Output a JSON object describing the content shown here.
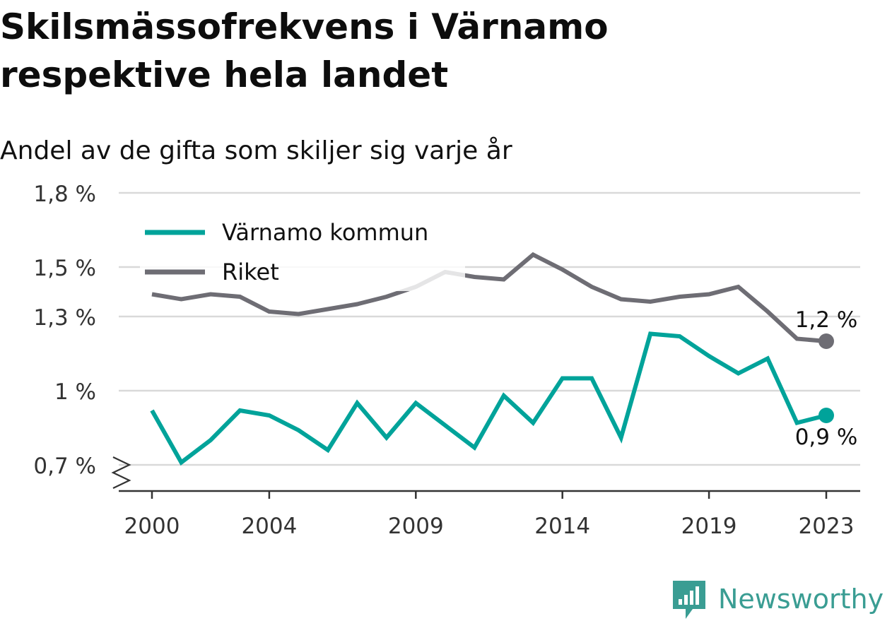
{
  "header": {
    "title": "Skilsmässofrekvens i Värnamo respektive hela landet",
    "subtitle": "Andel av de gifta som skiljer sig varje år"
  },
  "brand": {
    "name": "Newsworthy",
    "icon": "newsworthy-logo-icon",
    "color": "#3a9d93"
  },
  "chart_data": {
    "type": "line",
    "x": [
      2000,
      2001,
      2002,
      2003,
      2004,
      2005,
      2006,
      2007,
      2008,
      2009,
      2010,
      2011,
      2012,
      2013,
      2014,
      2015,
      2016,
      2017,
      2018,
      2019,
      2020,
      2021,
      2022,
      2023
    ],
    "x_ticks": [
      2000,
      2004,
      2009,
      2014,
      2019,
      2023
    ],
    "x_tick_labels": [
      "2000",
      "2004",
      "2009",
      "2014",
      "2019",
      "2023"
    ],
    "ylim": [
      0.7,
      1.8
    ],
    "y_ticks": [
      0.7,
      1.0,
      1.3,
      1.5,
      1.8
    ],
    "y_tick_labels": [
      "0,7 %",
      "1 %",
      "1,3 %",
      "1,5 %",
      "1,8 %"
    ],
    "axis_break": true,
    "grid": true,
    "legend_position": "top-left",
    "series": [
      {
        "name": "Värnamo kommun",
        "color": "#00a39a",
        "values": [
          0.92,
          0.71,
          0.8,
          0.92,
          0.9,
          0.84,
          0.76,
          0.95,
          0.81,
          0.95,
          0.86,
          0.77,
          0.98,
          0.87,
          1.05,
          1.05,
          0.81,
          1.23,
          1.22,
          1.14,
          1.07,
          1.13,
          0.87,
          0.9
        ],
        "end_label": "0,9 %"
      },
      {
        "name": "Riket",
        "color": "#6e6d74",
        "values": [
          1.39,
          1.37,
          1.39,
          1.38,
          1.32,
          1.31,
          1.33,
          1.35,
          1.38,
          1.42,
          1.48,
          1.46,
          1.45,
          1.55,
          1.49,
          1.42,
          1.37,
          1.36,
          1.38,
          1.39,
          1.42,
          1.32,
          1.21,
          1.2
        ],
        "end_label": "1,2 %"
      }
    ]
  }
}
